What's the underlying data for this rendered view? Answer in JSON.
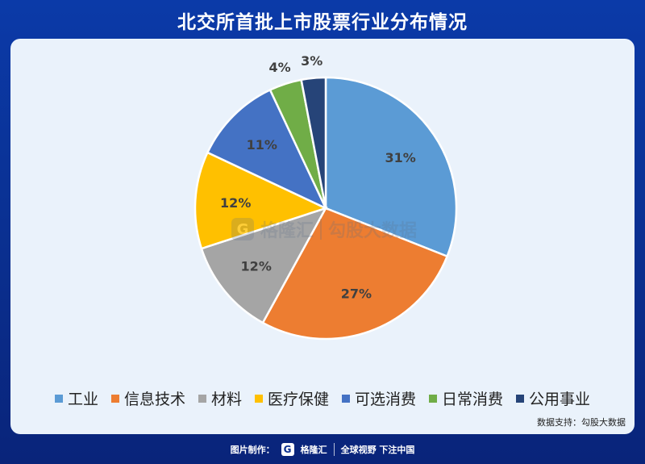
{
  "title": "北交所首批上市股票行业分布情况",
  "chart_data": {
    "type": "pie",
    "title": "北交所首批上市股票行业分布情况",
    "categories": [
      "工业",
      "信息技术",
      "材料",
      "医疗保健",
      "可选消费",
      "日常消费",
      "公用事业"
    ],
    "values": [
      31,
      27,
      12,
      12,
      11,
      4,
      3
    ],
    "labels": [
      "31%",
      "27%",
      "12%",
      "12%",
      "11%",
      "4%",
      "3%"
    ],
    "colors": [
      "#5b9bd5",
      "#ed7d31",
      "#a5a5a5",
      "#ffc000",
      "#4472c4",
      "#70ad47",
      "#264478"
    ],
    "start_angle_deg": 0,
    "direction": "clockwise",
    "legend_position": "bottom"
  },
  "watermark": {
    "brand": "格隆汇",
    "brand_url": "www.gelonghui.com",
    "source_name": "勾股大数据",
    "source_url": "www.gogudata.com"
  },
  "source_note": "数据支持：勾股大数据",
  "footer": {
    "made_by": "图片制作：",
    "brand": "格隆汇",
    "slogan": "全球视野 下注中国"
  }
}
